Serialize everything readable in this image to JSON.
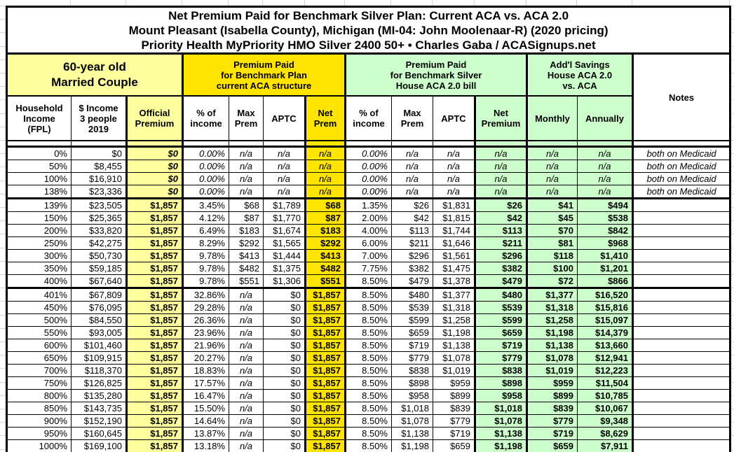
{
  "title": {
    "line1": "Net Premium Paid for Benchmark Silver Plan: Current ACA vs. ACA 2.0",
    "line2": "Mount Pleasant (Isabella County), Michigan (MI-04: John Moolenaar-R) (2020 pricing)",
    "line3": "Priority Health MyPriority HMO Silver 2400 50+ • Charles Gaba / ACASignups.net"
  },
  "group_headers": {
    "household": "60-year old\nMarried Couple",
    "current_aca": "Premium Paid\nfor Benchmark Plan\ncurrent ACA structure",
    "aca_20": "Premium Paid\nfor Benchmark Silver\nHouse ACA 2.0 bill",
    "savings": "Add'l Savings\nHouse ACA 2.0\nvs. ACA",
    "notes": "Notes"
  },
  "column_headers": {
    "fpl": "Household\nIncome\n(FPL)",
    "income": "$ Income\n3 people\n2019",
    "official": "Official\nPremium",
    "pct1": "% of\nincome",
    "max1": "Max\nPrem",
    "aptc1": "APTC",
    "net1": "Net\nPrem",
    "pct2": "% of\nincome",
    "max2": "Max\nPrem",
    "aptc2": "APTC",
    "net2": "Net\nPremium",
    "monthly": "Monthly",
    "annually": "Annually"
  },
  "colors": {
    "light_yellow": "#ffff9e",
    "gold": "#ffe400",
    "light_green": "#ccffcc",
    "border": "#000000"
  },
  "rows": [
    {
      "fpl": "0%",
      "income": "$0",
      "official": "$0",
      "pct1": "0.00%",
      "max1": "n/a",
      "aptc1": "n/a",
      "net1": "n/a",
      "pct2": "0.00%",
      "max2": "n/a",
      "aptc2": "n/a",
      "net2": "n/a",
      "monthly": "n/a",
      "annually": "n/a",
      "notes": "both on Medicaid"
    },
    {
      "fpl": "50%",
      "income": "$8,455",
      "official": "$0",
      "pct1": "0.00%",
      "max1": "n/a",
      "aptc1": "n/a",
      "net1": "n/a",
      "pct2": "0.00%",
      "max2": "n/a",
      "aptc2": "n/a",
      "net2": "n/a",
      "monthly": "n/a",
      "annually": "n/a",
      "notes": "both on Medicaid"
    },
    {
      "fpl": "100%",
      "income": "$16,910",
      "official": "$0",
      "pct1": "0.00%",
      "max1": "n/a",
      "aptc1": "n/a",
      "net1": "n/a",
      "pct2": "0.00%",
      "max2": "n/a",
      "aptc2": "n/a",
      "net2": "n/a",
      "monthly": "n/a",
      "annually": "n/a",
      "notes": "both on Medicaid"
    },
    {
      "fpl": "138%",
      "income": "$23,336",
      "official": "$0",
      "pct1": "0.00%",
      "max1": "n/a",
      "aptc1": "n/a",
      "net1": "n/a",
      "pct2": "0.00%",
      "max2": "n/a",
      "aptc2": "n/a",
      "net2": "n/a",
      "monthly": "n/a",
      "annually": "n/a",
      "notes": "both on Medicaid",
      "group_end": true
    },
    {
      "fpl": "139%",
      "income": "$23,505",
      "official": "$1,857",
      "pct1": "3.45%",
      "max1": "$68",
      "aptc1": "$1,789",
      "net1": "$68",
      "pct2": "1.35%",
      "max2": "$26",
      "aptc2": "$1,831",
      "net2": "$26",
      "monthly": "$41",
      "annually": "$494",
      "notes": ""
    },
    {
      "fpl": "150%",
      "income": "$25,365",
      "official": "$1,857",
      "pct1": "4.12%",
      "max1": "$87",
      "aptc1": "$1,770",
      "net1": "$87",
      "pct2": "2.00%",
      "max2": "$42",
      "aptc2": "$1,815",
      "net2": "$42",
      "monthly": "$45",
      "annually": "$538",
      "notes": ""
    },
    {
      "fpl": "200%",
      "income": "$33,820",
      "official": "$1,857",
      "pct1": "6.49%",
      "max1": "$183",
      "aptc1": "$1,674",
      "net1": "$183",
      "pct2": "4.00%",
      "max2": "$113",
      "aptc2": "$1,744",
      "net2": "$113",
      "monthly": "$70",
      "annually": "$842",
      "notes": ""
    },
    {
      "fpl": "250%",
      "income": "$42,275",
      "official": "$1,857",
      "pct1": "8.29%",
      "max1": "$292",
      "aptc1": "$1,565",
      "net1": "$292",
      "pct2": "6.00%",
      "max2": "$211",
      "aptc2": "$1,646",
      "net2": "$211",
      "monthly": "$81",
      "annually": "$968",
      "notes": ""
    },
    {
      "fpl": "300%",
      "income": "$50,730",
      "official": "$1,857",
      "pct1": "9.78%",
      "max1": "$413",
      "aptc1": "$1,444",
      "net1": "$413",
      "pct2": "7.00%",
      "max2": "$296",
      "aptc2": "$1,561",
      "net2": "$296",
      "monthly": "$118",
      "annually": "$1,410",
      "notes": ""
    },
    {
      "fpl": "350%",
      "income": "$59,185",
      "official": "$1,857",
      "pct1": "9.78%",
      "max1": "$482",
      "aptc1": "$1,375",
      "net1": "$482",
      "pct2": "7.75%",
      "max2": "$382",
      "aptc2": "$1,475",
      "net2": "$382",
      "monthly": "$100",
      "annually": "$1,201",
      "notes": ""
    },
    {
      "fpl": "400%",
      "income": "$67,640",
      "official": "$1,857",
      "pct1": "9.78%",
      "max1": "$551",
      "aptc1": "$1,306",
      "net1": "$551",
      "pct2": "8.50%",
      "max2": "$479",
      "aptc2": "$1,378",
      "net2": "$479",
      "monthly": "$72",
      "annually": "$866",
      "notes": "",
      "group_end": true
    },
    {
      "fpl": "401%",
      "income": "$67,809",
      "official": "$1,857",
      "pct1": "32.86%",
      "max1": "n/a",
      "aptc1": "$0",
      "net1": "$1,857",
      "pct2": "8.50%",
      "max2": "$480",
      "aptc2": "$1,377",
      "net2": "$480",
      "monthly": "$1,377",
      "annually": "$16,520",
      "notes": ""
    },
    {
      "fpl": "450%",
      "income": "$76,095",
      "official": "$1,857",
      "pct1": "29.28%",
      "max1": "n/a",
      "aptc1": "$0",
      "net1": "$1,857",
      "pct2": "8.50%",
      "max2": "$539",
      "aptc2": "$1,318",
      "net2": "$539",
      "monthly": "$1,318",
      "annually": "$15,816",
      "notes": ""
    },
    {
      "fpl": "500%",
      "income": "$84,550",
      "official": "$1,857",
      "pct1": "26.36%",
      "max1": "n/a",
      "aptc1": "$0",
      "net1": "$1,857",
      "pct2": "8.50%",
      "max2": "$599",
      "aptc2": "$1,258",
      "net2": "$599",
      "monthly": "$1,258",
      "annually": "$15,097",
      "notes": ""
    },
    {
      "fpl": "550%",
      "income": "$93,005",
      "official": "$1,857",
      "pct1": "23.96%",
      "max1": "n/a",
      "aptc1": "$0",
      "net1": "$1,857",
      "pct2": "8.50%",
      "max2": "$659",
      "aptc2": "$1,198",
      "net2": "$659",
      "monthly": "$1,198",
      "annually": "$14,379",
      "notes": ""
    },
    {
      "fpl": "600%",
      "income": "$101,460",
      "official": "$1,857",
      "pct1": "21.96%",
      "max1": "n/a",
      "aptc1": "$0",
      "net1": "$1,857",
      "pct2": "8.50%",
      "max2": "$719",
      "aptc2": "$1,138",
      "net2": "$719",
      "monthly": "$1,138",
      "annually": "$13,660",
      "notes": ""
    },
    {
      "fpl": "650%",
      "income": "$109,915",
      "official": "$1,857",
      "pct1": "20.27%",
      "max1": "n/a",
      "aptc1": "$0",
      "net1": "$1,857",
      "pct2": "8.50%",
      "max2": "$779",
      "aptc2": "$1,078",
      "net2": "$779",
      "monthly": "$1,078",
      "annually": "$12,941",
      "notes": ""
    },
    {
      "fpl": "700%",
      "income": "$118,370",
      "official": "$1,857",
      "pct1": "18.83%",
      "max1": "n/a",
      "aptc1": "$0",
      "net1": "$1,857",
      "pct2": "8.50%",
      "max2": "$838",
      "aptc2": "$1,019",
      "net2": "$838",
      "monthly": "$1,019",
      "annually": "$12,223",
      "notes": ""
    },
    {
      "fpl": "750%",
      "income": "$126,825",
      "official": "$1,857",
      "pct1": "17.57%",
      "max1": "n/a",
      "aptc1": "$0",
      "net1": "$1,857",
      "pct2": "8.50%",
      "max2": "$898",
      "aptc2": "$959",
      "net2": "$898",
      "monthly": "$959",
      "annually": "$11,504",
      "notes": ""
    },
    {
      "fpl": "800%",
      "income": "$135,280",
      "official": "$1,857",
      "pct1": "16.47%",
      "max1": "n/a",
      "aptc1": "$0",
      "net1": "$1,857",
      "pct2": "8.50%",
      "max2": "$958",
      "aptc2": "$899",
      "net2": "$958",
      "monthly": "$899",
      "annually": "$10,785",
      "notes": ""
    },
    {
      "fpl": "850%",
      "income": "$143,735",
      "official": "$1,857",
      "pct1": "15.50%",
      "max1": "n/a",
      "aptc1": "$0",
      "net1": "$1,857",
      "pct2": "8.50%",
      "max2": "$1,018",
      "aptc2": "$839",
      "net2": "$1,018",
      "monthly": "$839",
      "annually": "$10,067",
      "notes": ""
    },
    {
      "fpl": "900%",
      "income": "$152,190",
      "official": "$1,857",
      "pct1": "14.64%",
      "max1": "n/a",
      "aptc1": "$0",
      "net1": "$1,857",
      "pct2": "8.50%",
      "max2": "$1,078",
      "aptc2": "$779",
      "net2": "$1,078",
      "monthly": "$779",
      "annually": "$9,348",
      "notes": ""
    },
    {
      "fpl": "950%",
      "income": "$160,645",
      "official": "$1,857",
      "pct1": "13.87%",
      "max1": "n/a",
      "aptc1": "$0",
      "net1": "$1,857",
      "pct2": "8.50%",
      "max2": "$1,138",
      "aptc2": "$719",
      "net2": "$1,138",
      "monthly": "$719",
      "annually": "$8,629",
      "notes": ""
    },
    {
      "fpl": "1000%",
      "income": "$169,100",
      "official": "$1,857",
      "pct1": "13.18%",
      "max1": "n/a",
      "aptc1": "$0",
      "net1": "$1,857",
      "pct2": "8.50%",
      "max2": "$1,198",
      "aptc2": "$659",
      "net2": "$1,198",
      "monthly": "$659",
      "annually": "$7,911",
      "notes": ""
    }
  ]
}
